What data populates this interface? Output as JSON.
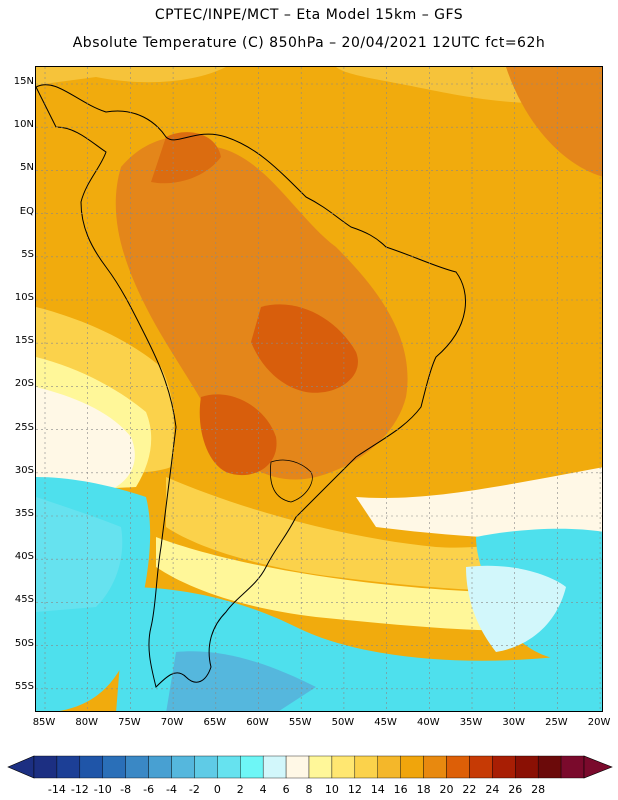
{
  "header": {
    "line1": "CPTEC/INPE/MCT –  Eta Model 15km – GFS",
    "line2": "Absolute Temperature (C) 850hPa – 20/04/2021 12UTC fct=62h"
  },
  "map": {
    "lat_ticks": [
      "15N",
      "10N",
      "5N",
      "EQ",
      "5S",
      "10S",
      "15S",
      "20S",
      "25S",
      "30S",
      "35S",
      "40S",
      "45S",
      "50S",
      "55S"
    ],
    "lon_ticks": [
      "85W",
      "80W",
      "75W",
      "70W",
      "65W",
      "60W",
      "55W",
      "50W",
      "45W",
      "40W",
      "35W",
      "30W",
      "25W",
      "20W"
    ],
    "background_color": "#f1ab0d",
    "warm_color": "#e4861a",
    "cold_color": "#4ee0ed"
  },
  "colorbar": {
    "labels": [
      "-14",
      "-12",
      "-10",
      "-8",
      "-6",
      "-4",
      "-2",
      "0",
      "2",
      "4",
      "6",
      "8",
      "10",
      "12",
      "14",
      "16",
      "18",
      "20",
      "22",
      "24",
      "26",
      "28"
    ],
    "colors": [
      "#1c2f82",
      "#1c3f96",
      "#1f55a8",
      "#2a6fb8",
      "#3a88c5",
      "#48a0d2",
      "#55b7dd",
      "#5fcbe6",
      "#66e2ef",
      "#6ef6f6",
      "#d2f7fb",
      "#fff8e6",
      "#fff799",
      "#ffe771",
      "#fbd24b",
      "#f4b72a",
      "#f0a50c",
      "#e8890f",
      "#dd5f07",
      "#c63a05",
      "#a81e04",
      "#8a1004",
      "#6b0a0a",
      "#7a0a2c"
    ]
  }
}
